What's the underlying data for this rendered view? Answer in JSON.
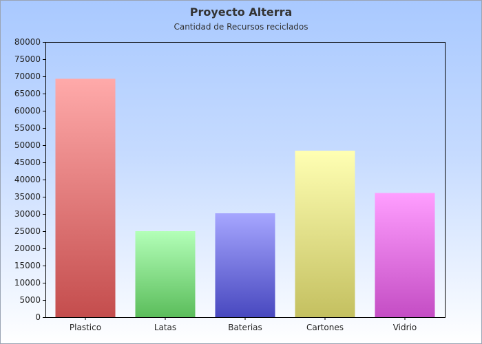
{
  "chart_data": {
    "type": "bar",
    "title": "Proyecto Alterra",
    "subtitle": "Cantidad de Recursos reciclados",
    "categories": [
      "Plastico",
      "Latas",
      "Baterias",
      "Cartones",
      "Vidrio"
    ],
    "values": [
      69300,
      25000,
      30200,
      48400,
      36100
    ],
    "ylim": [
      0,
      80000
    ],
    "yticks": [
      0,
      5000,
      10000,
      15000,
      20000,
      25000,
      30000,
      35000,
      40000,
      45000,
      50000,
      55000,
      60000,
      65000,
      70000,
      75000,
      80000
    ],
    "grid": false,
    "legend": "none",
    "bar_colors": [
      [
        "#ffaaaa",
        "#c44d4d"
      ],
      [
        "#b3ffb8",
        "#5bbd5b"
      ],
      [
        "#a6a6ff",
        "#4848bf"
      ],
      [
        "#ffffb3",
        "#c4c060"
      ],
      [
        "#ff9eff",
        "#c44dc4"
      ]
    ]
  }
}
